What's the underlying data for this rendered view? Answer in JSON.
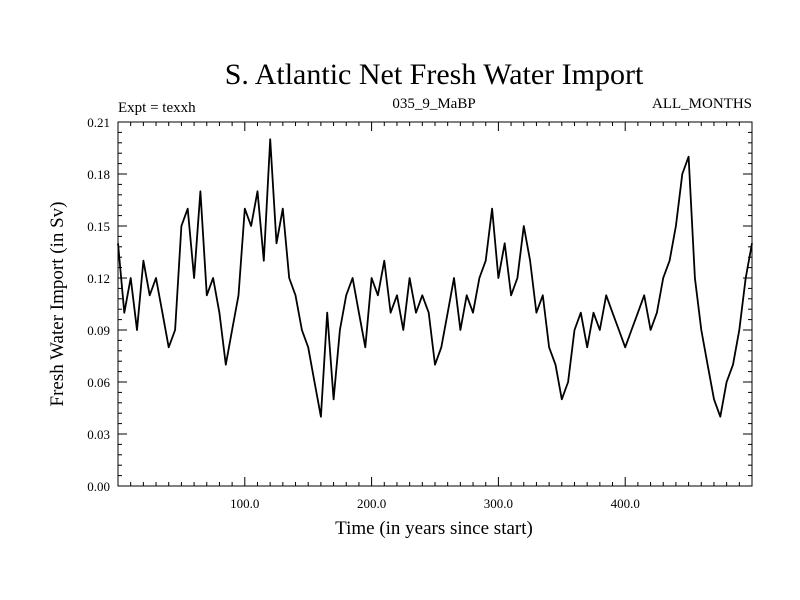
{
  "chart_data": {
    "type": "line",
    "title": "S. Atlantic Net Fresh Water Import",
    "experiment": "Expt = texxh",
    "run_label": "035_9_MaBP",
    "months_label": "ALL_MONTHS",
    "xlabel": "Time (in years since start)",
    "ylabel": "Fresh Water Import (in Sv)",
    "xlim": [
      0,
      500
    ],
    "ylim": [
      0.0,
      0.21
    ],
    "x_ticks": [
      100,
      200,
      300,
      400
    ],
    "x_tick_labels": [
      "100.0",
      "200.0",
      "300.0",
      "400.0"
    ],
    "y_ticks": [
      0.0,
      0.03,
      0.06,
      0.09,
      0.12,
      0.15,
      0.18,
      0.21
    ],
    "y_tick_labels": [
      "0.00",
      "0.03",
      "0.06",
      "0.09",
      "0.12",
      "0.15",
      "0.18",
      "0.21"
    ],
    "grid": false,
    "series": [
      {
        "name": "Net Fresh Water Import",
        "color": "#000000",
        "x": [
          0,
          5,
          10,
          15,
          20,
          25,
          30,
          35,
          40,
          45,
          50,
          55,
          60,
          65,
          70,
          75,
          80,
          85,
          90,
          95,
          100,
          105,
          110,
          115,
          120,
          125,
          130,
          135,
          140,
          145,
          150,
          155,
          160,
          165,
          170,
          175,
          180,
          185,
          190,
          195,
          200,
          205,
          210,
          215,
          220,
          225,
          230,
          235,
          240,
          245,
          250,
          255,
          260,
          265,
          270,
          275,
          280,
          285,
          290,
          295,
          300,
          305,
          310,
          315,
          320,
          325,
          330,
          335,
          340,
          345,
          350,
          355,
          360,
          365,
          370,
          375,
          380,
          385,
          390,
          395,
          400,
          405,
          410,
          415,
          420,
          425,
          430,
          435,
          440,
          445,
          450,
          455,
          460,
          465,
          470,
          475,
          480,
          485,
          490,
          495,
          500
        ],
        "values": [
          0.14,
          0.1,
          0.12,
          0.09,
          0.13,
          0.11,
          0.12,
          0.1,
          0.08,
          0.09,
          0.15,
          0.16,
          0.12,
          0.17,
          0.11,
          0.12,
          0.1,
          0.07,
          0.09,
          0.11,
          0.16,
          0.15,
          0.17,
          0.13,
          0.2,
          0.14,
          0.16,
          0.12,
          0.11,
          0.09,
          0.08,
          0.06,
          0.04,
          0.1,
          0.05,
          0.09,
          0.11,
          0.12,
          0.1,
          0.08,
          0.12,
          0.11,
          0.13,
          0.1,
          0.11,
          0.09,
          0.12,
          0.1,
          0.11,
          0.1,
          0.07,
          0.08,
          0.1,
          0.12,
          0.09,
          0.11,
          0.1,
          0.12,
          0.13,
          0.16,
          0.12,
          0.14,
          0.11,
          0.12,
          0.15,
          0.13,
          0.1,
          0.11,
          0.08,
          0.07,
          0.05,
          0.06,
          0.09,
          0.1,
          0.08,
          0.1,
          0.09,
          0.11,
          0.1,
          0.09,
          0.08,
          0.09,
          0.1,
          0.11,
          0.09,
          0.1,
          0.12,
          0.13,
          0.15,
          0.18,
          0.19,
          0.12,
          0.09,
          0.07,
          0.05,
          0.04,
          0.06,
          0.07,
          0.09,
          0.12,
          0.14
        ]
      }
    ]
  }
}
